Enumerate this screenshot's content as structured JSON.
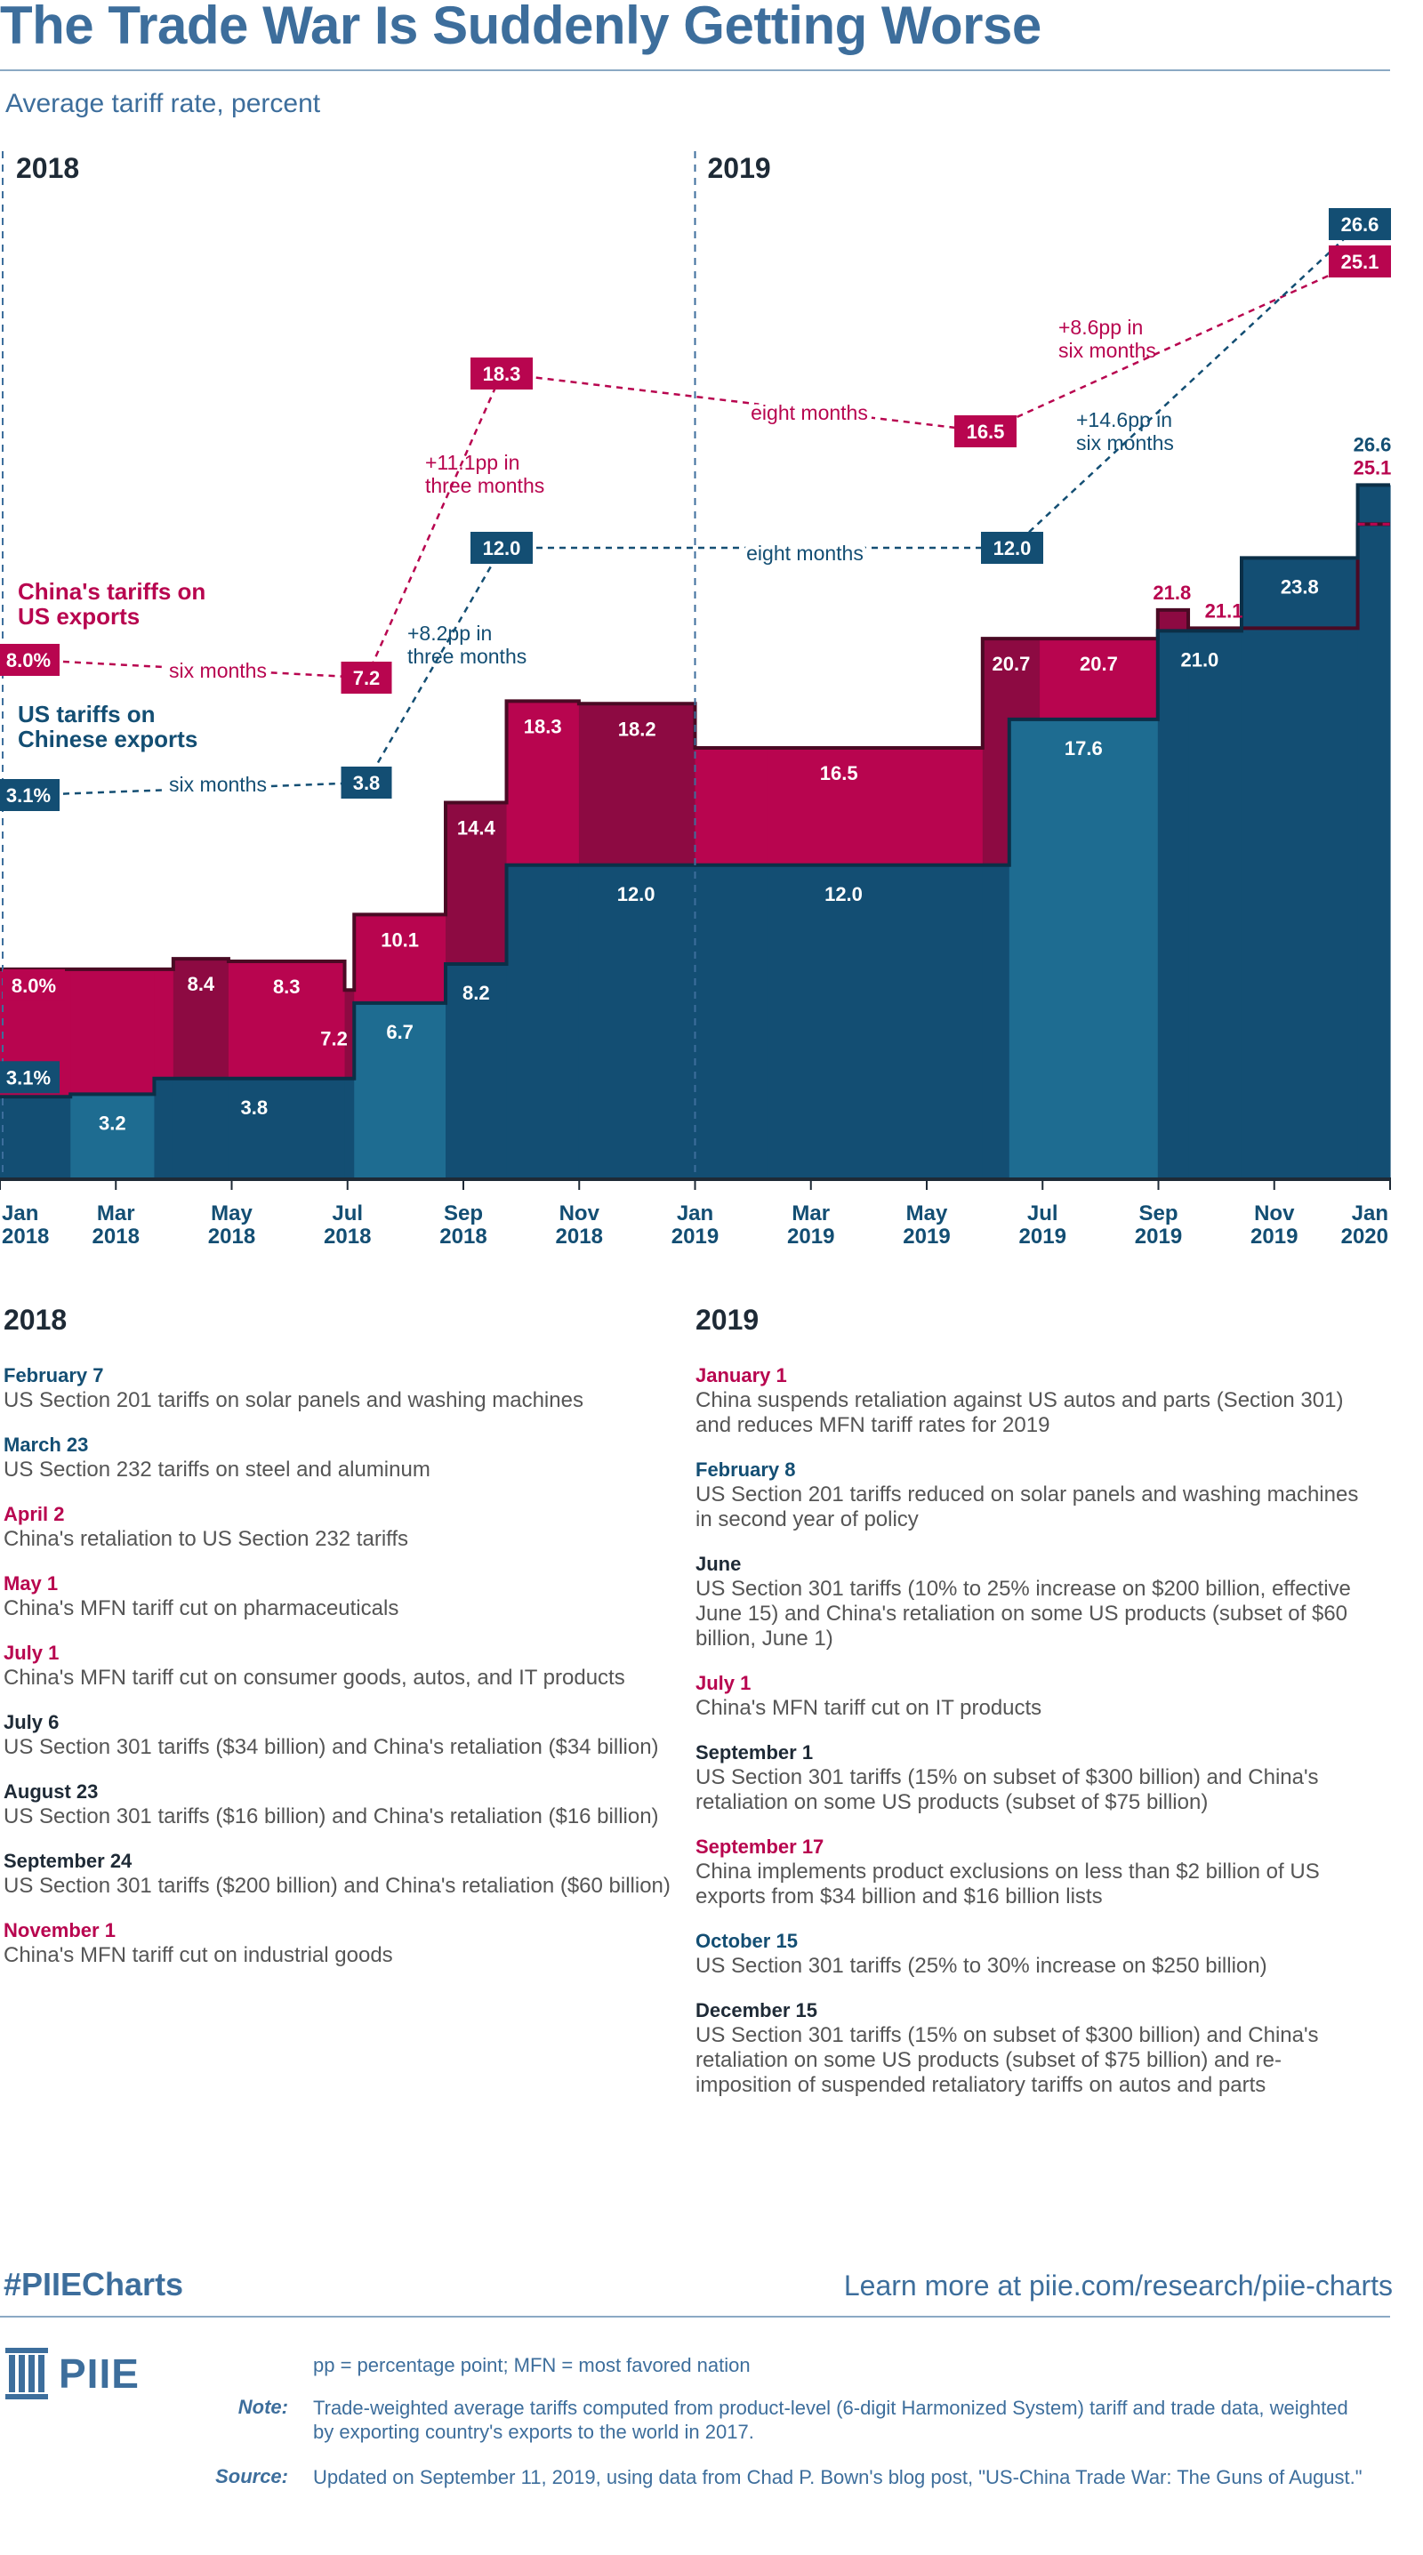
{
  "title": "The Trade War Is Suddenly Getting Worse",
  "subtitle": "Average tariff rate, percent",
  "colors": {
    "us": "#134e73",
    "us_light": "#1e6c91",
    "china": "#b8054f",
    "china_dark": "#8d0a42",
    "title": "#3d6e9c"
  },
  "chart_data": {
    "type": "area",
    "xlabel": "",
    "ylabel": "Average tariff rate, percent",
    "ylim": [
      0,
      26.6
    ],
    "year_labels": [
      "2018",
      "2019"
    ],
    "x_ticks": [
      {
        "month": "Jan",
        "year": "2018"
      },
      {
        "month": "Mar",
        "year": "2018"
      },
      {
        "month": "May",
        "year": "2018"
      },
      {
        "month": "Jul",
        "year": "2018"
      },
      {
        "month": "Sep",
        "year": "2018"
      },
      {
        "month": "Nov",
        "year": "2018"
      },
      {
        "month": "Jan",
        "year": "2019"
      },
      {
        "month": "Mar",
        "year": "2019"
      },
      {
        "month": "May",
        "year": "2019"
      },
      {
        "month": "Jul",
        "year": "2019"
      },
      {
        "month": "Sep",
        "year": "2019"
      },
      {
        "month": "Nov",
        "year": "2019"
      },
      {
        "month": "Jan",
        "year": "2020"
      }
    ],
    "series": [
      {
        "name": "US tariffs on Chinese exports",
        "steps": [
          {
            "from": "2018-01-01",
            "value": 3.1
          },
          {
            "from": "2018-02-07",
            "value": 3.2
          },
          {
            "from": "2018-03-23",
            "value": 3.8
          },
          {
            "from": "2018-07-06",
            "value": 6.7
          },
          {
            "from": "2018-08-23",
            "value": 8.2
          },
          {
            "from": "2018-09-24",
            "value": 12.0
          },
          {
            "from": "2019-02-08",
            "value": 12.0
          },
          {
            "from": "2019-06-15",
            "value": 17.6
          },
          {
            "from": "2019-09-01",
            "value": 21.0
          },
          {
            "from": "2019-10-15",
            "value": 23.8
          },
          {
            "from": "2019-12-15",
            "value": 26.6
          }
        ]
      },
      {
        "name": "China's tariffs on US exports",
        "steps": [
          {
            "from": "2018-01-01",
            "value": 8.0
          },
          {
            "from": "2018-04-02",
            "value": 8.4
          },
          {
            "from": "2018-05-01",
            "value": 8.3
          },
          {
            "from": "2018-07-01",
            "value": 7.2
          },
          {
            "from": "2018-07-06",
            "value": 10.1
          },
          {
            "from": "2018-08-23",
            "value": 14.4
          },
          {
            "from": "2018-09-24",
            "value": 18.3
          },
          {
            "from": "2018-11-01",
            "value": 18.2
          },
          {
            "from": "2019-01-01",
            "value": 16.5
          },
          {
            "from": "2019-06-01",
            "value": 20.7
          },
          {
            "from": "2019-07-01",
            "value": 20.7
          },
          {
            "from": "2019-09-01",
            "value": 21.8
          },
          {
            "from": "2019-09-17",
            "value": 21.1
          },
          {
            "from": "2019-12-15",
            "value": 25.1
          }
        ]
      }
    ],
    "step_labels": {
      "us": [
        "3.1%",
        "3.2",
        "3.8",
        "6.7",
        "8.2",
        "12.0",
        "12.0",
        "17.6",
        "21.0",
        "23.8",
        "26.6"
      ],
      "china": [
        "8.0%",
        "8.4",
        "8.3",
        "7.2",
        "10.1",
        "14.4",
        "18.3",
        "18.2",
        "16.5",
        "20.7",
        "20.7",
        "21.8",
        "21.1",
        "25.1"
      ]
    },
    "annotations": {
      "china_label": "China's tariffs on US exports",
      "us_label": "US tariffs on Chinese exports",
      "china_points": [
        {
          "date": "2018-01-01",
          "value": 8.0,
          "label": "8.0%"
        },
        {
          "date": "2018-07-01",
          "value": 7.2,
          "label": "7.2"
        },
        {
          "date": "2018-09-24",
          "value": 18.3,
          "label": "18.3"
        },
        {
          "date": "2019-06-01",
          "value": 16.5,
          "label": "16.5"
        },
        {
          "date": "2019-12-15",
          "value": 25.1,
          "label": "25.1"
        }
      ],
      "us_points": [
        {
          "date": "2018-01-01",
          "value": 3.1,
          "label": "3.1%"
        },
        {
          "date": "2018-07-01",
          "value": 3.8,
          "label": "3.8"
        },
        {
          "date": "2018-09-24",
          "value": 12.0,
          "label": "12.0"
        },
        {
          "date": "2019-06-01",
          "value": 12.0,
          "label": "12.0"
        },
        {
          "date": "2019-12-15",
          "value": 26.6,
          "label": "26.6"
        }
      ],
      "china_gaps": [
        "six months",
        "+11.1pp in three months",
        "eight months",
        "+8.6pp in six months"
      ],
      "us_gaps": [
        "six months",
        "+8.2pp in three months",
        "eight months",
        "+14.6pp in six months"
      ],
      "end_labels": {
        "us": "26.6",
        "china": "25.1"
      }
    }
  },
  "events": {
    "heading_2018": "2018",
    "heading_2019": "2019",
    "list_2018": [
      {
        "date": "February 7",
        "who": "us",
        "text": "US Section 201 tariffs on solar panels and washing machines"
      },
      {
        "date": "March 23",
        "who": "us",
        "text": "US Section 232 tariffs on steel and aluminum"
      },
      {
        "date": "April 2",
        "who": "china",
        "text": "China's retaliation to US Section 232 tariffs"
      },
      {
        "date": "May 1",
        "who": "china",
        "text": "China's MFN tariff cut on pharmaceuticals"
      },
      {
        "date": "July 1",
        "who": "china",
        "text": "China's MFN tariff cut on consumer goods, autos, and IT products"
      },
      {
        "date": "July 6",
        "who": "both",
        "text": "US Section 301 tariffs ($34 billion) and China's retaliation ($34 billion)"
      },
      {
        "date": "August 23",
        "who": "both",
        "text": "US Section 301 tariffs ($16 billion) and China's retaliation ($16 billion)"
      },
      {
        "date": "September 24",
        "who": "both",
        "text": "US Section 301 tariffs ($200 billion) and China's retaliation ($60 billion)"
      },
      {
        "date": "November 1",
        "who": "china",
        "text": "China's MFN tariff cut on industrial goods"
      }
    ],
    "list_2019": [
      {
        "date": "January 1",
        "who": "china",
        "text": "China suspends retaliation against US autos and parts (Section 301) and reduces MFN tariff rates for 2019"
      },
      {
        "date": "February 8",
        "who": "us",
        "text": "US Section 201 tariffs reduced on solar panels and washing machines in second year of policy"
      },
      {
        "date": "June",
        "who": "both",
        "text": "US Section 301 tariffs (10% to 25% increase on $200 billion, effective June 15) and China's retaliation on some US products (subset of $60 billion, June 1)"
      },
      {
        "date": "July 1",
        "who": "china",
        "text": "China's MFN tariff cut on IT products"
      },
      {
        "date": "September 1",
        "who": "both",
        "text": "US Section 301 tariffs (15% on subset of $300 billion) and China's retaliation on some US products (subset of $75 billion)"
      },
      {
        "date": "September 17",
        "who": "china",
        "text": "China implements product exclusions on less than $2 billion of US exports from $34 billion and $16 billion lists"
      },
      {
        "date": "October 15",
        "who": "us",
        "text": "US Section 301 tariffs (25% to 30% increase on $250 billion)"
      },
      {
        "date": "December 15",
        "who": "both",
        "text": "US Section 301 tariffs (15% on subset of $300 billion) and China's retaliation on some US products (subset of $75 billion) and re-imposition of suspended retaliatory tariffs on autos and parts"
      }
    ]
  },
  "footer": {
    "hashtag": "#PIIECharts",
    "link": "Learn more at piie.com/research/piie-charts",
    "logo": "PIIE",
    "abbrev": "pp = percentage point; MFN = most favored nation",
    "note_label": "Note:",
    "note": "Trade-weighted average tariffs computed from product-level (6-digit Harmonized System) tariff and trade data, weighted by exporting country's exports to the world in 2017.",
    "source_label": "Source:",
    "source": "Updated on September 11, 2019, using data from Chad P. Bown's blog post, \"US-China Trade War: The Guns of August.\""
  }
}
